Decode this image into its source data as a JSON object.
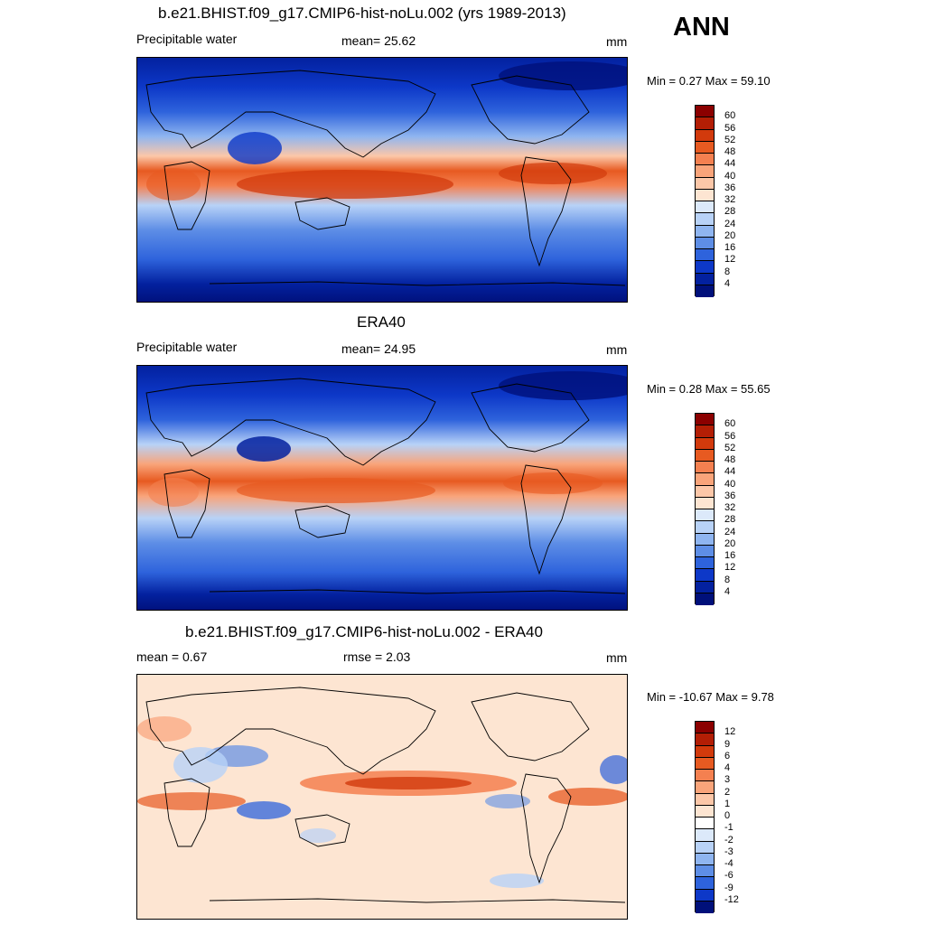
{
  "header": {
    "season": "ANN"
  },
  "panels": [
    {
      "title": "b.e21.BHIST.f09_g17.CMIP6-hist-noLu.002 (yrs 1989-2013)",
      "left_label": "Precipitable water",
      "center_label": "mean=  25.62",
      "units": "mm",
      "minmax": "Min =   0.27 Max =  59.10",
      "levels": [
        "60",
        "56",
        "52",
        "48",
        "44",
        "40",
        "36",
        "32",
        "28",
        "24",
        "20",
        "16",
        "12",
        "8",
        "4"
      ],
      "colors": [
        "#8b0000",
        "#b31e05",
        "#d23a0c",
        "#e75a21",
        "#f48050",
        "#f9a47a",
        "#fcc7a8",
        "#fde5d2",
        "#dce9fa",
        "#b8d2f7",
        "#8fb5f0",
        "#5e8ee6",
        "#2e63dc",
        "#0d38c8",
        "#03219f",
        "#00107a"
      ]
    },
    {
      "title": "ERA40",
      "left_label": "Precipitable water",
      "center_label": "mean=  24.95",
      "units": "mm",
      "minmax": "Min =   0.28 Max =  55.65",
      "levels": [
        "60",
        "56",
        "52",
        "48",
        "44",
        "40",
        "36",
        "32",
        "28",
        "24",
        "20",
        "16",
        "12",
        "8",
        "4"
      ],
      "colors": [
        "#8b0000",
        "#b31e05",
        "#d23a0c",
        "#e75a21",
        "#f48050",
        "#f9a47a",
        "#fcc7a8",
        "#fde5d2",
        "#dce9fa",
        "#b8d2f7",
        "#8fb5f0",
        "#5e8ee6",
        "#2e63dc",
        "#0d38c8",
        "#03219f",
        "#00107a"
      ]
    },
    {
      "title": "b.e21.BHIST.f09_g17.CMIP6-hist-noLu.002 - ERA40",
      "left_label": "mean =   0.67",
      "center_label": "rmse =   2.03",
      "units": "mm",
      "minmax": "Min = -10.67 Max =   9.78",
      "levels": [
        "12",
        "9",
        "6",
        "4",
        "3",
        "2",
        "1",
        "0",
        "-1",
        "-2",
        "-3",
        "-4",
        "-6",
        "-9",
        "-12"
      ],
      "colors": [
        "#8b0000",
        "#b31e05",
        "#d23a0c",
        "#e75a21",
        "#f48050",
        "#f9a47a",
        "#fcc7a8",
        "#fde5d2",
        "#ffffff",
        "#dce9fa",
        "#b8d2f7",
        "#8fb5f0",
        "#5e8ee6",
        "#2e63dc",
        "#0d38c8",
        "#00107a"
      ]
    }
  ]
}
